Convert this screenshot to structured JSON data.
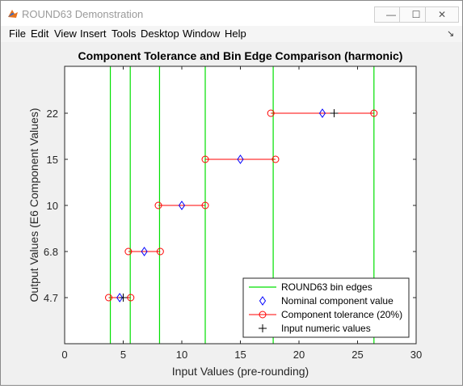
{
  "window": {
    "title": "ROUND63 Demonstration",
    "buttons": {
      "minimize": "—",
      "maximize": "☐",
      "close": "✕"
    },
    "colors": {
      "icon_orange": "#e8741d",
      "icon_blue": "#2a6bd1"
    }
  },
  "menu": {
    "items": [
      "File",
      "Edit",
      "View",
      "Insert",
      "Tools",
      "Desktop",
      "Window",
      "Help"
    ],
    "dock_icon": "↘"
  },
  "chart_data": {
    "type": "scatter",
    "title": "Component Tolerance and Bin Edge Comparison (harmonic)",
    "xlabel": "Input Values (pre-rounding)",
    "ylabel": "Output Values (E6 Component Values)",
    "xlim": [
      0,
      30
    ],
    "xticks": [
      0,
      5,
      10,
      15,
      20,
      25,
      30
    ],
    "yticks": [
      {
        "label": "4.7",
        "value": 4.7
      },
      {
        "label": "6.8",
        "value": 6.8
      },
      {
        "label": "10",
        "value": 10
      },
      {
        "label": "15",
        "value": 15
      },
      {
        "label": "22",
        "value": 22
      }
    ],
    "grid": false,
    "legend_placement": "bottom-right",
    "bin_edges": [
      3.9,
      5.6,
      8.1,
      12.0,
      17.8,
      26.4
    ],
    "nominal": [
      {
        "x": 4.7,
        "y": 4.7
      },
      {
        "x": 6.8,
        "y": 6.8
      },
      {
        "x": 10,
        "y": 10
      },
      {
        "x": 15,
        "y": 15
      },
      {
        "x": 22,
        "y": 22
      }
    ],
    "tolerance": [
      {
        "low": 3.76,
        "high": 5.64,
        "y": 4.7
      },
      {
        "low": 5.44,
        "high": 8.16,
        "y": 6.8
      },
      {
        "low": 8.0,
        "high": 12.0,
        "y": 10
      },
      {
        "low": 12.0,
        "high": 18.0,
        "y": 15
      },
      {
        "low": 17.6,
        "high": 26.4,
        "y": 22
      }
    ],
    "inputs": [
      {
        "x": 5.0,
        "y": 4.7
      },
      {
        "x": 23.0,
        "y": 22
      }
    ],
    "series": [
      {
        "name": "ROUND63 bin edges",
        "color": "#00e000"
      },
      {
        "name": "Nominal component value",
        "color": "#0000ff"
      },
      {
        "name": "Component tolerance (20%)",
        "color": "#ff0000"
      },
      {
        "name": "Input numeric values",
        "color": "#000000"
      }
    ]
  }
}
